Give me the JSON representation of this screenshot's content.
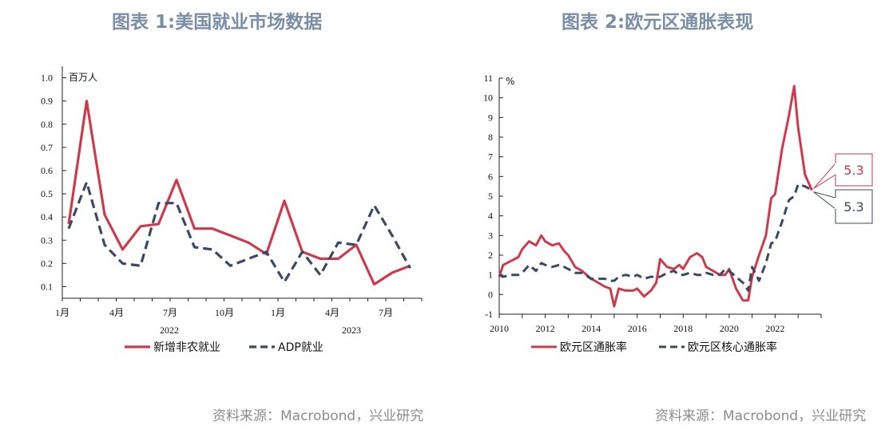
{
  "page": {
    "title_left": "图表 1:美国就业市场数据",
    "title_right": "图表 2:欧元区通胀表现",
    "source_left": "资料来源：Macrobond，兴业研究",
    "source_right": "资料来源：Macrobond，兴业研究"
  },
  "colors": {
    "red": "#cc3a4c",
    "navy": "#3a4a66"
  },
  "chart_data": [
    {
      "type": "line",
      "unit_label": "百万人",
      "ylim": [
        0.05,
        1.05
      ],
      "yticks": [
        "1.0",
        "0.9",
        "0.8",
        "0.7",
        "0.6",
        "0.5",
        "0.4",
        "0.3",
        "0.2",
        "0.1"
      ],
      "xticks": [
        "1月",
        "4月",
        "7月",
        "10月",
        "1月",
        "4月",
        "7月"
      ],
      "year_labels": [
        "2022",
        "2023"
      ],
      "x": [
        "2022-01",
        "2022-02",
        "2022-03",
        "2022-04",
        "2022-05",
        "2022-06",
        "2022-07",
        "2022-08",
        "2022-09",
        "2022-10",
        "2022-11",
        "2022-12",
        "2023-01",
        "2023-02",
        "2023-03",
        "2023-04",
        "2023-05",
        "2023-06",
        "2023-07",
        "2023-08"
      ],
      "series": [
        {
          "name": "新增非农就业",
          "color": "#cc3a4c",
          "dash": false,
          "values": [
            0.37,
            0.9,
            0.41,
            0.26,
            0.36,
            0.37,
            0.56,
            0.35,
            0.35,
            0.32,
            0.29,
            0.24,
            0.47,
            0.25,
            0.22,
            0.22,
            0.28,
            0.11,
            0.16,
            0.19
          ]
        },
        {
          "name": "ADP就业",
          "color": "#3a4a66",
          "dash": true,
          "values": [
            0.35,
            0.55,
            0.28,
            0.2,
            0.19,
            0.46,
            0.46,
            0.27,
            0.26,
            0.19,
            0.22,
            0.25,
            0.12,
            0.25,
            0.15,
            0.29,
            0.28,
            0.45,
            0.32,
            0.18
          ]
        }
      ],
      "grid": false,
      "legend_position": "bottom"
    },
    {
      "type": "line",
      "unit_label": "%",
      "ylim": [
        -1,
        11
      ],
      "yticks": [
        "11",
        "10",
        "9",
        "8",
        "7",
        "6",
        "5",
        "4",
        "3",
        "2",
        "1",
        "0",
        "-1"
      ],
      "xticks": [
        "2010",
        "2012",
        "2014",
        "2016",
        "2018",
        "2020",
        "2022"
      ],
      "x": [
        2010.0,
        2010.17,
        2010.5,
        2010.83,
        2011.0,
        2011.3,
        2011.6,
        2011.83,
        2012.0,
        2012.3,
        2012.6,
        2012.83,
        2013.0,
        2013.3,
        2013.6,
        2014.0,
        2014.3,
        2014.6,
        2014.83,
        2015.0,
        2015.2,
        2015.5,
        2015.83,
        2016.0,
        2016.3,
        2016.6,
        2016.83,
        2017.0,
        2017.3,
        2017.6,
        2017.83,
        2018.0,
        2018.3,
        2018.6,
        2018.83,
        2019.0,
        2019.3,
        2019.6,
        2019.83,
        2020.0,
        2020.3,
        2020.6,
        2020.83,
        2021.0,
        2021.3,
        2021.6,
        2021.83,
        2022.0,
        2022.3,
        2022.6,
        2022.83,
        2023.0,
        2023.3,
        2023.6
      ],
      "series": [
        {
          "name": "欧元区通胀率",
          "color": "#cc3a4c",
          "dash": false,
          "values": [
            0.9,
            1.5,
            1.7,
            1.9,
            2.3,
            2.7,
            2.5,
            3.0,
            2.7,
            2.5,
            2.6,
            2.2,
            2.0,
            1.4,
            1.2,
            0.8,
            0.6,
            0.4,
            0.3,
            -0.6,
            0.3,
            0.2,
            0.2,
            0.3,
            -0.1,
            0.2,
            0.6,
            1.8,
            1.4,
            1.3,
            1.5,
            1.3,
            1.9,
            2.1,
            1.9,
            1.4,
            1.2,
            1.0,
            1.0,
            1.3,
            0.3,
            -0.3,
            -0.3,
            0.9,
            2.0,
            3.0,
            4.9,
            5.1,
            7.4,
            9.1,
            10.6,
            8.5,
            6.1,
            5.3
          ]
        },
        {
          "name": "欧元区核心通胀率",
          "color": "#3a4a66",
          "dash": true,
          "values": [
            1.0,
            0.9,
            1.0,
            1.0,
            1.1,
            1.5,
            1.2,
            1.6,
            1.5,
            1.4,
            1.5,
            1.4,
            1.3,
            1.1,
            1.1,
            0.8,
            0.8,
            0.8,
            0.7,
            0.7,
            0.9,
            1.0,
            0.9,
            1.0,
            0.8,
            0.9,
            0.9,
            0.9,
            1.1,
            1.2,
            1.0,
            1.0,
            1.1,
            1.0,
            1.0,
            1.1,
            1.0,
            1.0,
            1.3,
            1.2,
            0.9,
            0.6,
            0.2,
            1.4,
            0.7,
            1.6,
            2.6,
            2.7,
            3.7,
            4.8,
            5.0,
            5.6,
            5.5,
            5.3
          ]
        }
      ],
      "callouts": [
        {
          "series": 0,
          "value": "5.3"
        },
        {
          "series": 1,
          "value": "5.3"
        }
      ],
      "grid": false,
      "legend_position": "bottom"
    }
  ]
}
